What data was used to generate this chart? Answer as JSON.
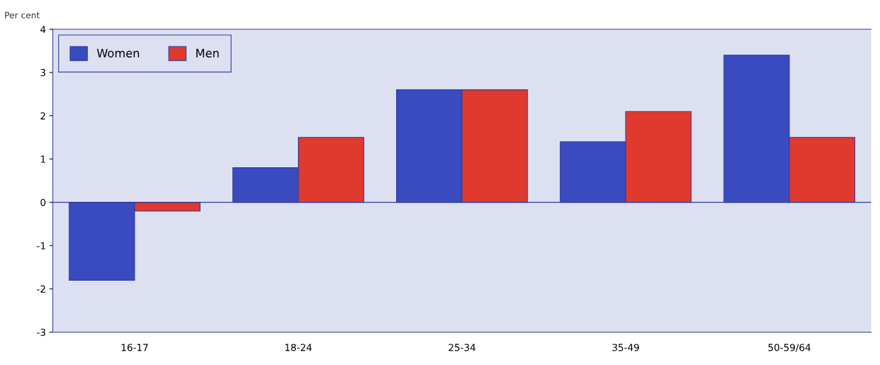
{
  "chart_data": {
    "type": "bar",
    "ylabel": "Per cent",
    "categories": [
      "16-17",
      "18-24",
      "25-34",
      "35-49",
      "50-59/64"
    ],
    "series": [
      {
        "name": "Women",
        "color": "#3a4bc0",
        "values": [
          -1.8,
          0.8,
          2.6,
          1.4,
          3.4
        ]
      },
      {
        "name": "Men",
        "color": "#e0392e",
        "values": [
          -0.2,
          1.5,
          2.6,
          2.1,
          1.5
        ]
      }
    ],
    "ylim": [
      -3,
      4
    ],
    "yticks": [
      -3,
      {
        "value": -2,
        "label": "-2"
      },
      {
        "value": -1,
        "label": "-1"
      },
      0,
      1,
      2,
      3,
      4
    ],
    "ref_lines": [
      {
        "axis": "y",
        "value": 0,
        "color": "#2b3a9a"
      }
    ],
    "grid": false,
    "legend": "top left"
  }
}
